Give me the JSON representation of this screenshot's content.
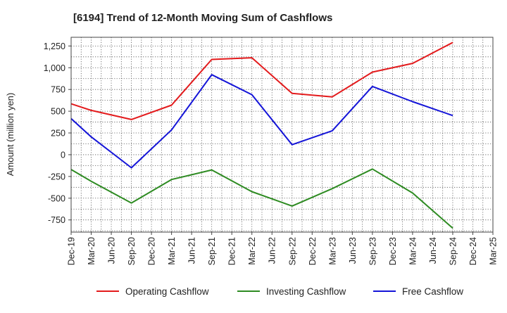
{
  "chart_data": {
    "type": "line",
    "title": "[6194]  Trend of 12-Month Moving Sum of Cashflows",
    "xlabel": "",
    "ylabel": "Amount (million yen)",
    "categories": [
      "Dec-19",
      "Mar-20",
      "Jun-20",
      "Sep-20",
      "Dec-20",
      "Mar-21",
      "Jun-21",
      "Sep-21",
      "Dec-21",
      "Mar-22",
      "Jun-22",
      "Sep-22",
      "Dec-22",
      "Mar-23",
      "Jun-23",
      "Sep-23",
      "Dec-23",
      "Mar-24",
      "Jun-24",
      "Sep-24",
      "Dec-24",
      "Mar-25"
    ],
    "ylim": [
      -890,
      1350
    ],
    "yticks": [
      -750,
      -500,
      -250,
      0,
      250,
      500,
      750,
      1000,
      1250
    ],
    "ytick_labels": [
      "-750",
      "-500",
      "-250",
      "0",
      "250",
      "500",
      "750",
      "1,000",
      "1,250"
    ],
    "grid": true,
    "legend": "bottom",
    "series": [
      {
        "name": "Operating Cashflow",
        "color": "#e31a1c",
        "points": [
          [
            "Dec-19",
            585
          ],
          [
            "Mar-20",
            510
          ],
          [
            "Sep-20",
            405
          ],
          [
            "Mar-21",
            570
          ],
          [
            "Sep-21",
            1095
          ],
          [
            "Mar-22",
            1115
          ],
          [
            "Sep-22",
            705
          ],
          [
            "Mar-23",
            665
          ],
          [
            "Sep-23",
            950
          ],
          [
            "Mar-24",
            1050
          ],
          [
            "Sep-24",
            1290
          ]
        ]
      },
      {
        "name": "Investing Cashflow",
        "color": "#2e8b22",
        "points": [
          [
            "Dec-19",
            -170
          ],
          [
            "Mar-20",
            -305
          ],
          [
            "Sep-20",
            -555
          ],
          [
            "Mar-21",
            -285
          ],
          [
            "Sep-21",
            -175
          ],
          [
            "Mar-22",
            -425
          ],
          [
            "Sep-22",
            -590
          ],
          [
            "Mar-23",
            -390
          ],
          [
            "Sep-23",
            -165
          ],
          [
            "Mar-24",
            -440
          ],
          [
            "Sep-24",
            -845
          ]
        ]
      },
      {
        "name": "Free Cashflow",
        "color": "#1414d8",
        "points": [
          [
            "Dec-19",
            415
          ],
          [
            "Mar-20",
            205
          ],
          [
            "Sep-20",
            -150
          ],
          [
            "Mar-21",
            285
          ],
          [
            "Sep-21",
            920
          ],
          [
            "Mar-22",
            690
          ],
          [
            "Sep-22",
            115
          ],
          [
            "Mar-23",
            275
          ],
          [
            "Sep-23",
            785
          ],
          [
            "Mar-24",
            610
          ],
          [
            "Sep-24",
            450
          ]
        ]
      }
    ]
  }
}
